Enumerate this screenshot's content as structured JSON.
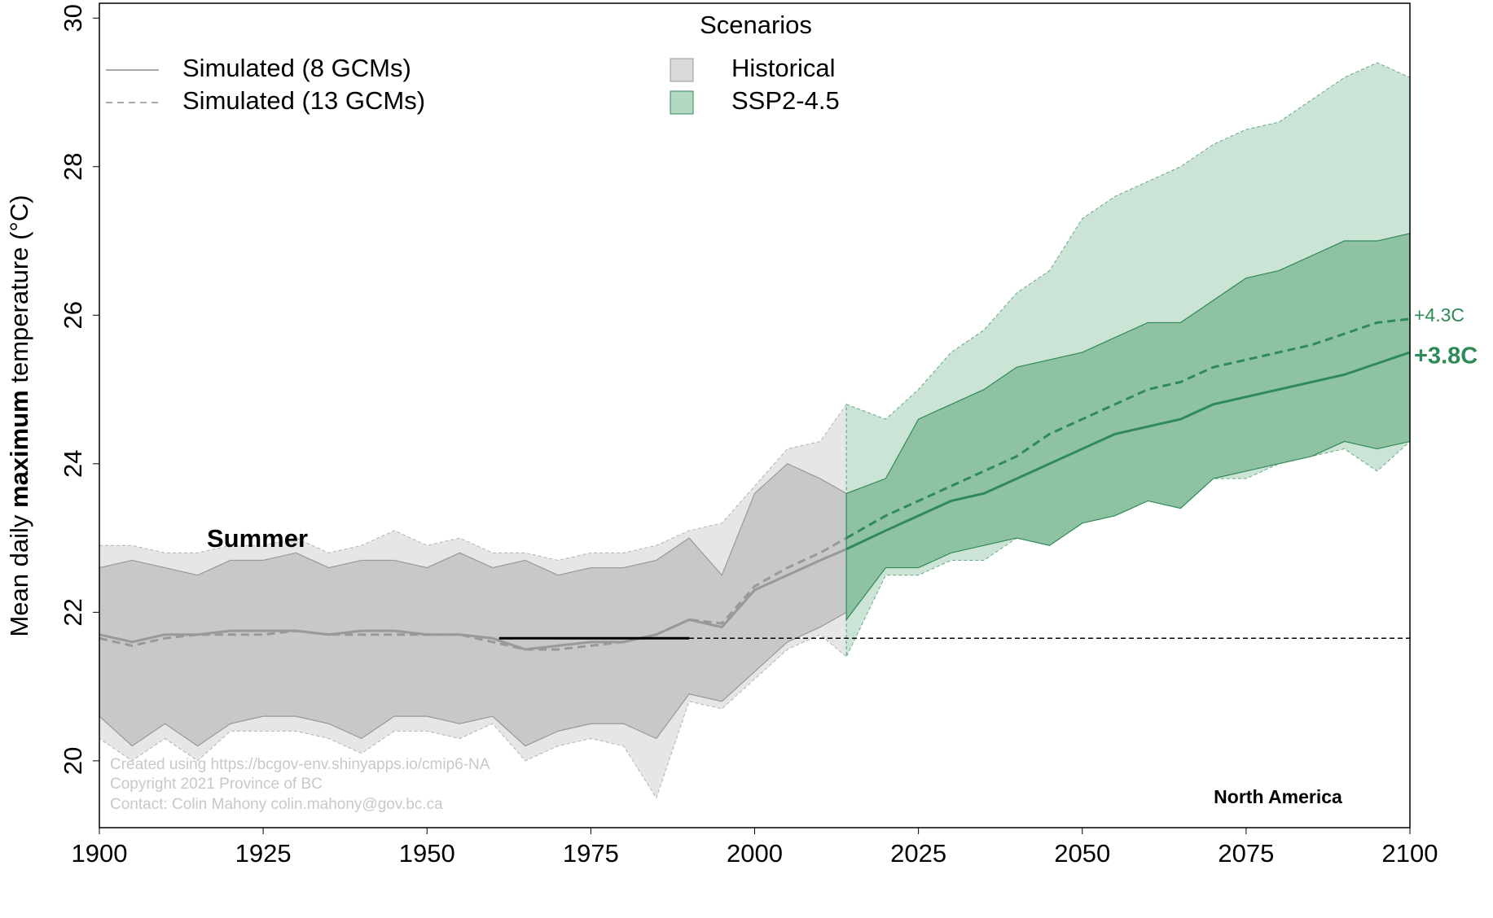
{
  "chart_data": {
    "type": "band_line",
    "title": "Scenarios",
    "ylabel_parts": [
      "Mean daily ",
      "maximum",
      " temperature (°C)"
    ],
    "season": "Summer",
    "region": "North America",
    "credits": [
      "Created using https://bcgov-env.shinyapps.io/cmip6-NA",
      "Copyright 2021 Province of BC",
      "Contact: Colin Mahony colin.mahony@gov.bc.ca"
    ],
    "line_styles": [
      "Simulated (8 GCMs)",
      "Simulated (13 GCMs)"
    ],
    "xlim": [
      1900,
      2100
    ],
    "ylim": [
      19.1,
      30.2
    ],
    "xticks": [
      1900,
      1925,
      1950,
      1975,
      2000,
      2025,
      2050,
      2075,
      2100
    ],
    "yticks": [
      20,
      22,
      24,
      26,
      28,
      30
    ],
    "baseline": {
      "value": 21.65,
      "x": [
        1961,
        1990
      ]
    },
    "scenarios": [
      {
        "name": "Historical",
        "color": "#d9d9d9",
        "band_8_color": "#c8c8c8",
        "band_13_color": "#e6e6e6",
        "line_color": "#999999",
        "x": [
          1900,
          1905,
          1910,
          1915,
          1920,
          1925,
          1930,
          1935,
          1940,
          1945,
          1950,
          1955,
          1960,
          1965,
          1970,
          1975,
          1980,
          1985,
          1990,
          1995,
          2000,
          2005,
          2010,
          2014
        ],
        "mean_8": [
          21.7,
          21.6,
          21.7,
          21.7,
          21.75,
          21.75,
          21.75,
          21.7,
          21.75,
          21.75,
          21.7,
          21.7,
          21.65,
          21.5,
          21.55,
          21.6,
          21.6,
          21.7,
          21.9,
          21.8,
          22.3,
          22.5,
          22.7,
          22.85
        ],
        "mean_13": [
          21.65,
          21.55,
          21.65,
          21.7,
          21.7,
          21.7,
          21.75,
          21.7,
          21.7,
          21.7,
          21.7,
          21.7,
          21.6,
          21.5,
          21.5,
          21.55,
          21.6,
          21.7,
          21.9,
          21.85,
          22.35,
          22.6,
          22.8,
          23.0
        ],
        "band_8": {
          "upper": [
            22.6,
            22.7,
            22.6,
            22.5,
            22.7,
            22.7,
            22.8,
            22.6,
            22.7,
            22.7,
            22.6,
            22.8,
            22.6,
            22.7,
            22.5,
            22.6,
            22.6,
            22.7,
            23.0,
            22.5,
            23.6,
            24.0,
            23.8,
            23.6
          ],
          "lower": [
            20.6,
            20.2,
            20.5,
            20.2,
            20.5,
            20.6,
            20.6,
            20.5,
            20.3,
            20.6,
            20.6,
            20.5,
            20.6,
            20.2,
            20.4,
            20.5,
            20.5,
            20.3,
            20.9,
            20.8,
            21.2,
            21.6,
            21.8,
            22.0
          ]
        },
        "band_13": {
          "upper": [
            22.9,
            22.9,
            22.8,
            22.8,
            22.9,
            22.9,
            23.0,
            22.8,
            22.9,
            23.1,
            22.9,
            23.0,
            22.8,
            22.8,
            22.7,
            22.8,
            22.8,
            22.9,
            23.1,
            23.2,
            23.7,
            24.2,
            24.3,
            24.8
          ],
          "lower": [
            20.3,
            20.0,
            20.3,
            20.0,
            20.4,
            20.4,
            20.4,
            20.3,
            20.1,
            20.4,
            20.4,
            20.3,
            20.5,
            20.0,
            20.2,
            20.3,
            20.2,
            19.5,
            20.8,
            20.7,
            21.1,
            21.5,
            21.7,
            21.4
          ]
        }
      },
      {
        "name": "SSP2-4.5",
        "color": "#b3d9c2",
        "band_8_color": "#8fc2a3",
        "band_13_color": "#cce4d6",
        "line_color": "#2e8b57",
        "x": [
          2014,
          2020,
          2025,
          2030,
          2035,
          2040,
          2045,
          2050,
          2055,
          2060,
          2065,
          2070,
          2075,
          2080,
          2085,
          2090,
          2095,
          2100
        ],
        "mean_8": [
          22.85,
          23.1,
          23.3,
          23.5,
          23.6,
          23.8,
          24.0,
          24.2,
          24.4,
          24.5,
          24.6,
          24.8,
          24.9,
          25.0,
          25.1,
          25.2,
          25.35,
          25.5
        ],
        "mean_13": [
          23.0,
          23.3,
          23.5,
          23.7,
          23.9,
          24.1,
          24.4,
          24.6,
          24.8,
          25.0,
          25.1,
          25.3,
          25.4,
          25.5,
          25.6,
          25.75,
          25.9,
          25.95
        ],
        "band_8": {
          "upper": [
            23.6,
            23.8,
            24.6,
            24.8,
            25.0,
            25.3,
            25.4,
            25.5,
            25.7,
            25.9,
            25.9,
            26.2,
            26.5,
            26.6,
            26.8,
            27.0,
            27.0,
            27.1
          ],
          "lower": [
            21.9,
            22.6,
            22.6,
            22.8,
            22.9,
            23.0,
            22.9,
            23.2,
            23.3,
            23.5,
            23.4,
            23.8,
            23.9,
            24.0,
            24.1,
            24.3,
            24.2,
            24.3
          ]
        },
        "band_13": {
          "upper": [
            24.8,
            24.6,
            25.0,
            25.5,
            25.8,
            26.3,
            26.6,
            27.3,
            27.6,
            27.8,
            28.0,
            28.3,
            28.5,
            28.6,
            28.9,
            29.2,
            29.4,
            29.2
          ],
          "lower": [
            21.4,
            22.5,
            22.5,
            22.7,
            22.7,
            23.0,
            23.1,
            23.2,
            23.4,
            23.5,
            23.6,
            23.8,
            23.8,
            24.0,
            24.1,
            24.2,
            23.9,
            24.3
          ]
        }
      }
    ],
    "annotations": [
      {
        "text": "+4.3C",
        "y": 25.95
      },
      {
        "text": "+3.8C",
        "y": 25.5
      }
    ]
  }
}
